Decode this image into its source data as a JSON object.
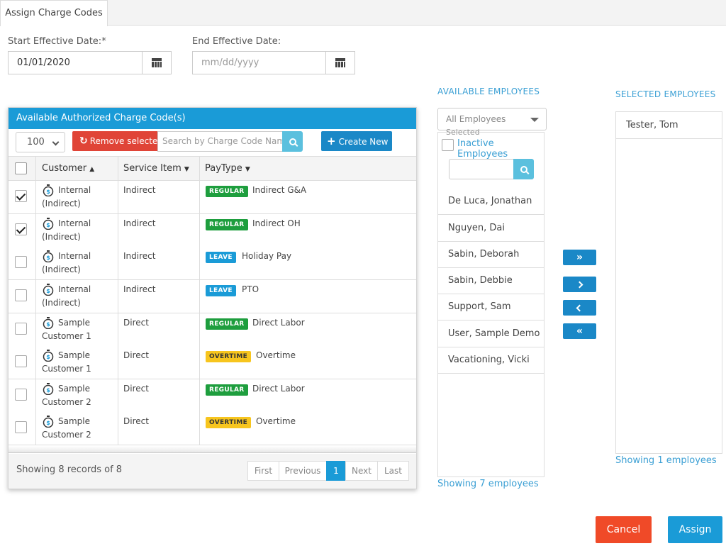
{
  "tab": {
    "label": "Assign Charge Codes"
  },
  "start_date": {
    "label": "Start Effective Date:*",
    "value": "01/01/2020"
  },
  "end_date": {
    "label": "End Effective Date:",
    "placeholder": "mm/dd/yyyy"
  },
  "charge_codes": {
    "title": "Available Authorized Charge Code(s)",
    "page_size": "100",
    "remove_label": "Remove selected",
    "search_placeholder": "Search by Charge Code Name",
    "create_label": "Create New",
    "columns": {
      "customer": "Customer",
      "service_item": "Service Item",
      "paytype": "PayType"
    },
    "rows": [
      {
        "checked": true,
        "customer_line1": "Internal",
        "customer_line2": "(Indirect)",
        "service": "Indirect",
        "badge": "REGULAR",
        "badge_type": "regular",
        "name": "Indirect G&A"
      },
      {
        "checked": true,
        "customer_line1": "Internal",
        "customer_line2": "(Indirect)",
        "service": "Indirect",
        "badge": "REGULAR",
        "badge_type": "regular",
        "name": "Indirect OH"
      },
      {
        "checked": false,
        "customer_line1": "Internal",
        "customer_line2": "(Indirect)",
        "service": "Indirect",
        "badge": "LEAVE",
        "badge_type": "leave",
        "name": "Holiday Pay"
      },
      {
        "checked": false,
        "customer_line1": "Internal",
        "customer_line2": "(Indirect)",
        "service": "Indirect",
        "badge": "LEAVE",
        "badge_type": "leave",
        "name": "PTO"
      },
      {
        "checked": false,
        "customer_line1": "Sample",
        "customer_line2": "Customer 1",
        "service": "Direct",
        "badge": "REGULAR",
        "badge_type": "regular",
        "name": "Direct Labor"
      },
      {
        "checked": false,
        "customer_line1": "Sample",
        "customer_line2": "Customer 1",
        "service": "Direct",
        "badge": "OVERTIME",
        "badge_type": "overtime",
        "name": "Overtime"
      },
      {
        "checked": false,
        "customer_line1": "Sample",
        "customer_line2": "Customer 2",
        "service": "Direct",
        "badge": "REGULAR",
        "badge_type": "regular",
        "name": "Direct Labor"
      },
      {
        "checked": false,
        "customer_line1": "Sample",
        "customer_line2": "Customer 2",
        "service": "Direct",
        "badge": "OVERTIME",
        "badge_type": "overtime",
        "name": "Overtime"
      }
    ],
    "footer_text": "Showing 8 records of 8",
    "pager": {
      "first": "First",
      "previous": "Previous",
      "current": "1",
      "next": "Next",
      "last": "Last"
    }
  },
  "available_employees": {
    "title": "AVAILABLE EMPLOYEES",
    "filter": "All Employees",
    "filter_sub": "Selected",
    "inactive_label": "Inactive Employees",
    "items": [
      "De Luca, Jonathan",
      "Nguyen, Dai",
      "Sabin, Deborah",
      "Sabin, Debbie",
      "Support, Sam",
      "User, Sample Demo",
      "Vacationing, Vicki"
    ],
    "showing": "Showing 7 employees"
  },
  "selected_employees": {
    "title": "SELECTED EMPLOYEES",
    "items": [
      "Tester, Tom"
    ],
    "showing": "Showing 1 employees"
  },
  "actions": {
    "cancel": "Cancel",
    "assign": "Assign"
  },
  "colors": {
    "accent": "#1a9bd7",
    "danger": "#e04437",
    "regular": "#1e9e3e",
    "overtime": "#f7c51e"
  }
}
